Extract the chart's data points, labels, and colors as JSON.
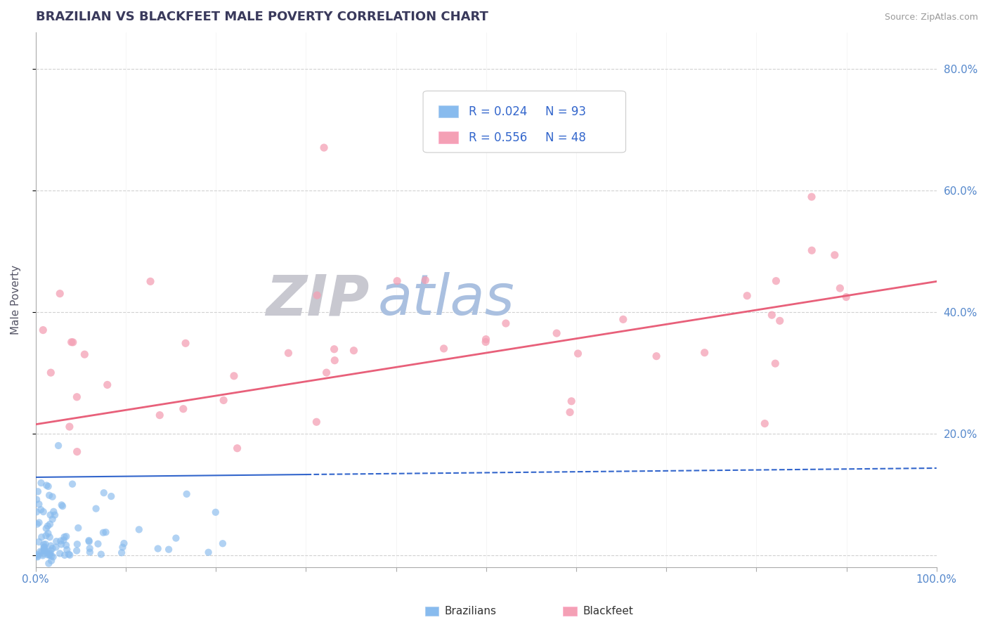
{
  "title": "BRAZILIAN VS BLACKFEET MALE POVERTY CORRELATION CHART",
  "source": "Source: ZipAtlas.com",
  "ylabel": "Male Poverty",
  "xlim": [
    0.0,
    1.0
  ],
  "ylim": [
    -0.02,
    0.86
  ],
  "xticks": [
    0.0,
    0.1,
    0.2,
    0.3,
    0.4,
    0.5,
    0.6,
    0.7,
    0.8,
    0.9,
    1.0
  ],
  "xtick_labels": [
    "0.0%",
    "",
    "",
    "",
    "",
    "",
    "",
    "",
    "",
    "",
    "100.0%"
  ],
  "yticks": [
    0.0,
    0.2,
    0.4,
    0.6,
    0.8
  ],
  "ytick_labels": [
    "",
    "20.0%",
    "40.0%",
    "60.0%",
    "80.0%"
  ],
  "grid_color": "#cccccc",
  "bg_color": "#ffffff",
  "watermark_zip": "ZIP",
  "watermark_atlas": "atlas",
  "watermark_zip_color": "#c8c8d0",
  "watermark_atlas_color": "#aac0e0",
  "legend_R1": "R = 0.024",
  "legend_N1": "N = 93",
  "legend_R2": "R = 0.556",
  "legend_N2": "N = 48",
  "blue_color": "#88bbee",
  "pink_color": "#f4a0b5",
  "blue_line_color": "#3366cc",
  "pink_line_color": "#e8607a",
  "title_color": "#3a3a5c",
  "axis_label_color": "#555566",
  "tick_color": "#5588cc",
  "source_color": "#999999",
  "legend_text_color": "#3366cc",
  "legend_label_color": "#333333"
}
